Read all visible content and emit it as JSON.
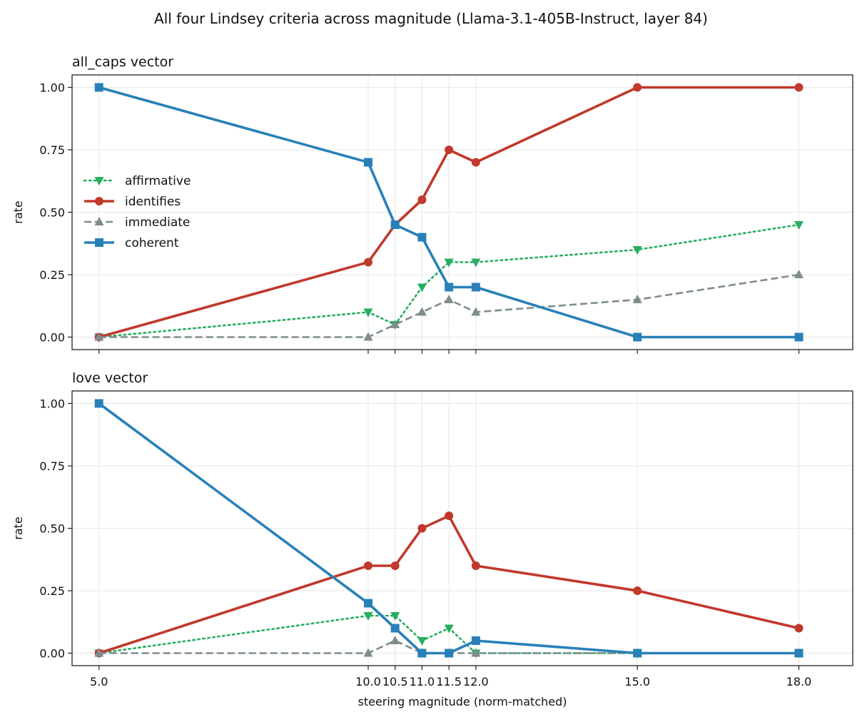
{
  "figure": {
    "suptitle": "All four Lindsey criteria across magnitude (Llama-3.1-405B-Instruct, layer 84)"
  },
  "legend_entries": [
    "affirmative",
    "identifies",
    "immediate",
    "coherent"
  ],
  "chart_data": [
    {
      "type": "line",
      "title": "all_caps vector",
      "xlabel": "",
      "ylabel": "rate",
      "x": [
        5.0,
        10.0,
        10.5,
        11.0,
        11.5,
        12.0,
        15.0,
        18.0
      ],
      "xticks": [
        "5.0",
        "10.0",
        "10.5",
        "11.0",
        "11.5",
        "12.0",
        "15.0",
        "18.0"
      ],
      "show_xtick_labels": false,
      "yticks": [
        "0.00",
        "0.25",
        "0.50",
        "0.75",
        "1.00"
      ],
      "xlim": [
        4.5,
        19.0
      ],
      "ylim": [
        -0.05,
        1.05
      ],
      "grid": true,
      "legend": "center-left",
      "series": [
        {
          "name": "affirmative",
          "color": "#27ae60",
          "style": "dotted",
          "marker": "triangle-down",
          "values": [
            0.0,
            0.1,
            0.05,
            0.2,
            0.3,
            0.3,
            0.35,
            0.45
          ]
        },
        {
          "name": "identifies",
          "color": "#c0392b",
          "style": "solid",
          "marker": "circle",
          "values": [
            0.0,
            0.3,
            0.45,
            0.55,
            0.75,
            0.7,
            1.0,
            1.0
          ]
        },
        {
          "name": "immediate",
          "color": "#7f8c8d",
          "style": "dashed",
          "marker": "triangle-up",
          "values": [
            0.0,
            0.0,
            0.05,
            0.1,
            0.15,
            0.1,
            0.15,
            0.25
          ]
        },
        {
          "name": "coherent",
          "color": "#2980b9",
          "style": "solid",
          "marker": "square",
          "values": [
            1.0,
            0.7,
            0.45,
            0.4,
            0.2,
            0.2,
            0.0,
            0.0
          ]
        }
      ]
    },
    {
      "type": "line",
      "title": "love vector",
      "xlabel": "steering magnitude (norm-matched)",
      "ylabel": "rate",
      "x": [
        5.0,
        10.0,
        10.5,
        11.0,
        11.5,
        12.0,
        15.0,
        18.0
      ],
      "xticks": [
        "5.0",
        "10.0",
        "10.5",
        "11.0",
        "11.5",
        "12.0",
        "15.0",
        "18.0"
      ],
      "show_xtick_labels": true,
      "yticks": [
        "0.00",
        "0.25",
        "0.50",
        "0.75",
        "1.00"
      ],
      "xlim": [
        4.5,
        19.0
      ],
      "ylim": [
        -0.05,
        1.05
      ],
      "grid": true,
      "legend": "none",
      "series": [
        {
          "name": "affirmative",
          "color": "#27ae60",
          "style": "dotted",
          "marker": "triangle-down",
          "values": [
            0.0,
            0.15,
            0.15,
            0.05,
            0.1,
            0.0,
            0.0,
            0.0
          ]
        },
        {
          "name": "identifies",
          "color": "#c0392b",
          "style": "solid",
          "marker": "circle",
          "values": [
            0.0,
            0.35,
            0.35,
            0.5,
            0.55,
            0.35,
            0.25,
            0.1
          ]
        },
        {
          "name": "immediate",
          "color": "#7f8c8d",
          "style": "dashed",
          "marker": "triangle-up",
          "values": [
            0.0,
            0.0,
            0.05,
            0.0,
            0.0,
            0.0,
            0.0,
            0.0
          ]
        },
        {
          "name": "coherent",
          "color": "#2980b9",
          "style": "solid",
          "marker": "square",
          "values": [
            1.0,
            0.2,
            0.1,
            0.0,
            0.0,
            0.05,
            0.0,
            0.0
          ]
        }
      ]
    }
  ]
}
